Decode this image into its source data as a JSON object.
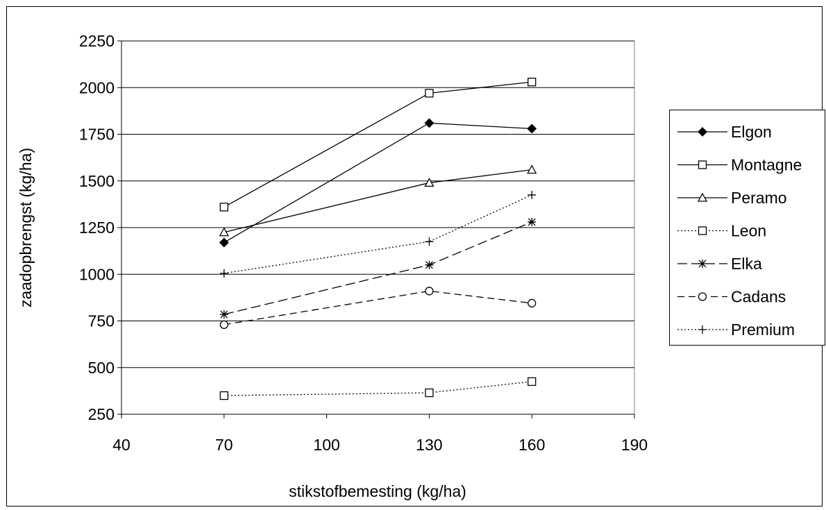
{
  "chart_data": {
    "type": "line",
    "title": "",
    "xlabel": "stikstofbemesting (kg/ha)",
    "ylabel": "zaadopbrengst (kg/ha)",
    "xlim": [
      40,
      190
    ],
    "ylim": [
      250,
      2250
    ],
    "xticks": [
      40,
      70,
      100,
      130,
      160,
      190
    ],
    "yticks": [
      250,
      500,
      750,
      1000,
      1250,
      1500,
      1750,
      2000,
      2250
    ],
    "grid": "horizontal",
    "legend_position": "right",
    "x": [
      70,
      130,
      160
    ],
    "series": [
      {
        "name": "Elgon",
        "values": [
          1170,
          1810,
          1780
        ],
        "dash": "solid",
        "marker": "diamond-filled"
      },
      {
        "name": "Montagne",
        "values": [
          1360,
          1970,
          2030
        ],
        "dash": "solid",
        "marker": "square-open"
      },
      {
        "name": "Peramo",
        "values": [
          1225,
          1490,
          1560
        ],
        "dash": "solid",
        "marker": "triangle-open"
      },
      {
        "name": "Leon",
        "values": [
          350,
          365,
          425
        ],
        "dash": "dotted",
        "marker": "square-open"
      },
      {
        "name": "Elka",
        "values": [
          785,
          1050,
          1280
        ],
        "dash": "long-dash",
        "marker": "asterisk"
      },
      {
        "name": "Cadans",
        "values": [
          730,
          910,
          845
        ],
        "dash": "dashed",
        "marker": "circle-open"
      },
      {
        "name": "Premium",
        "values": [
          1005,
          1175,
          1425
        ],
        "dash": "dotted",
        "marker": "plus"
      }
    ]
  }
}
